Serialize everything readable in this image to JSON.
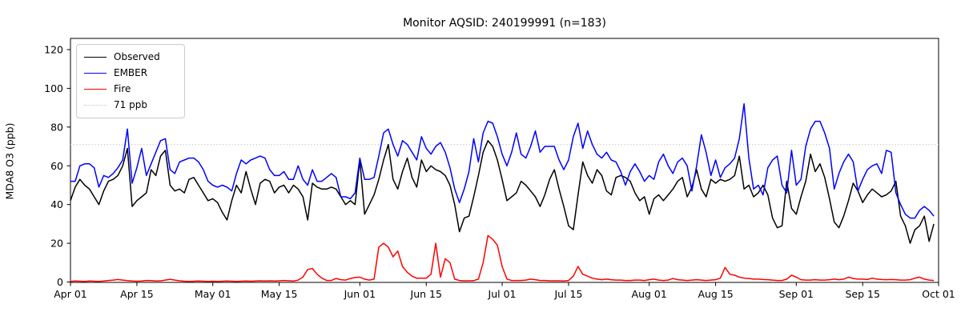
{
  "title": "Monitor AQSID: 240199991 (n=183)",
  "axes": {
    "ylabel": "MDA8 O3 (ppb)",
    "y_ticks": [
      0,
      20,
      40,
      60,
      80,
      100,
      120
    ],
    "frame_color": "#000000",
    "text_color": "#000000"
  },
  "legend": {
    "entries": [
      {
        "label": "Observed",
        "color": "#000000",
        "style": "solid"
      },
      {
        "label": "EMBER",
        "color": "#0000ff",
        "style": "solid"
      },
      {
        "label": "Fire",
        "color": "#ff0000",
        "style": "solid"
      },
      {
        "label": "71 ppb",
        "color": "#c8c8c8",
        "style": "dotted"
      }
    ]
  },
  "chart_data": {
    "type": "line",
    "title": "Monitor AQSID: 240199991 (n=183)",
    "xlabel": "",
    "ylabel": "MDA8 O3 (ppb)",
    "n_points": 183,
    "x_start": "Apr 01",
    "x_end": "Sep 30",
    "x_unit": "day",
    "ylim_ticks": [
      0,
      120
    ],
    "grid": false,
    "legend_position": "upper left",
    "reference_line": {
      "label": "71 ppb",
      "value": 71,
      "color": "#c8c8c8",
      "style": "dotted"
    },
    "x_ticks": [
      {
        "label": "Apr 01",
        "day": 0
      },
      {
        "label": "Apr 15",
        "day": 14
      },
      {
        "label": "May 01",
        "day": 30
      },
      {
        "label": "May 15",
        "day": 44
      },
      {
        "label": "Jun 01",
        "day": 61
      },
      {
        "label": "Jun 15",
        "day": 75
      },
      {
        "label": "Jul 01",
        "day": 91
      },
      {
        "label": "Jul 15",
        "day": 105
      },
      {
        "label": "Aug 01",
        "day": 122
      },
      {
        "label": "Aug 15",
        "day": 136
      },
      {
        "label": "Sep 01",
        "day": 153
      },
      {
        "label": "Sep 15",
        "day": 167
      },
      {
        "label": "Oct 01",
        "day": 183
      }
    ],
    "series": [
      {
        "name": "Observed",
        "color": "#000000",
        "values": [
          42,
          49,
          53,
          50,
          48,
          44,
          40,
          47,
          52,
          53,
          55,
          60,
          69,
          39,
          42,
          44,
          46,
          58,
          55,
          65,
          68,
          50,
          47,
          48,
          46,
          53,
          54,
          50,
          46,
          42,
          43,
          41,
          36,
          32,
          42,
          50,
          46,
          57,
          48,
          40,
          51,
          53,
          52,
          46,
          49,
          50,
          46,
          50,
          48,
          44,
          32,
          51,
          49,
          48,
          48,
          49,
          48,
          44,
          40,
          42,
          40,
          63,
          35,
          40,
          45,
          53,
          63,
          71,
          53,
          48,
          57,
          64,
          54,
          49,
          63,
          57,
          60,
          58,
          57,
          55,
          50,
          40,
          26,
          33,
          34,
          44,
          55,
          67,
          73,
          70,
          63,
          53,
          42,
          44,
          46,
          52,
          50,
          47,
          44,
          39,
          45,
          53,
          58,
          48,
          39,
          29,
          27,
          45,
          62,
          55,
          51,
          58,
          55,
          47,
          45,
          54,
          55,
          54,
          52,
          46,
          42,
          44,
          35,
          43,
          45,
          42,
          45,
          48,
          52,
          54,
          44,
          49,
          58,
          48,
          44,
          53,
          51,
          53,
          52,
          53,
          55,
          65,
          48,
          50,
          44,
          46,
          50,
          45,
          33,
          28,
          29,
          52,
          38,
          35,
          44,
          52,
          66,
          57,
          61,
          54,
          43,
          31,
          28,
          34,
          42,
          51,
          47,
          41,
          45,
          48,
          46,
          44,
          45,
          47,
          52,
          34,
          29,
          20,
          27,
          29,
          34,
          21,
          30
        ]
      },
      {
        "name": "EMBER",
        "color": "#0000ff",
        "values": [
          52,
          52,
          60,
          61,
          61,
          59,
          49,
          55,
          54,
          56,
          59,
          63,
          79,
          51,
          59,
          69,
          55,
          61,
          67,
          73,
          74,
          58,
          56,
          62,
          63,
          64,
          64,
          62,
          58,
          52,
          50,
          49,
          50,
          49,
          47,
          56,
          63,
          61,
          63,
          64,
          65,
          64,
          58,
          55,
          55,
          57,
          53,
          53,
          60,
          53,
          50,
          58,
          52,
          52,
          54,
          56,
          54,
          44,
          44,
          43,
          46,
          64,
          53,
          53,
          54,
          65,
          77,
          79,
          71,
          65,
          73,
          71,
          67,
          63,
          75,
          69,
          66,
          70,
          72,
          67,
          59,
          48,
          41,
          48,
          57,
          74,
          62,
          77,
          83,
          82,
          75,
          66,
          60,
          67,
          77,
          66,
          64,
          70,
          78,
          67,
          70,
          70,
          70,
          63,
          58,
          63,
          75,
          82,
          69,
          78,
          71,
          66,
          64,
          67,
          63,
          62,
          57,
          50,
          57,
          61,
          57,
          52,
          55,
          53,
          62,
          66,
          60,
          56,
          62,
          64,
          60,
          47,
          60,
          76,
          67,
          55,
          63,
          54,
          59,
          61,
          64,
          74,
          92,
          64,
          48,
          50,
          45,
          59,
          63,
          65,
          50,
          46,
          68,
          50,
          53,
          70,
          79,
          83,
          83,
          77,
          69,
          48,
          56,
          62,
          66,
          62,
          47,
          53,
          58,
          60,
          61,
          56,
          68,
          67,
          46,
          40,
          35,
          33,
          33,
          37,
          39,
          37,
          34
        ]
      },
      {
        "name": "Fire",
        "color": "#ff0000",
        "values": [
          0.3,
          0.5,
          0.4,
          0.3,
          0.5,
          0.4,
          0.3,
          0.5,
          0.8,
          1.0,
          1.3,
          1.0,
          0.7,
          0.5,
          0.4,
          0.5,
          0.8,
          0.7,
          0.5,
          0.6,
          1.0,
          1.4,
          1.0,
          0.6,
          0.4,
          0.3,
          0.4,
          0.5,
          0.4,
          0.3,
          0.4,
          0.3,
          0.4,
          0.5,
          0.4,
          0.3,
          0.4,
          0.5,
          0.4,
          0.5,
          0.6,
          0.5,
          0.6,
          0.5,
          0.6,
          0.8,
          0.6,
          0.5,
          1.0,
          2.5,
          6.5,
          7.0,
          4.0,
          2.0,
          0.8,
          0.8,
          1.8,
          1.2,
          1.0,
          1.8,
          2.3,
          2.5,
          1.5,
          1.0,
          1.5,
          18,
          20,
          18,
          13,
          16,
          8,
          5,
          3,
          2,
          2,
          2,
          4,
          20,
          2.5,
          12,
          10,
          1.5,
          0.8,
          0.6,
          0.6,
          0.7,
          1.5,
          10,
          24,
          22,
          19,
          8,
          1.5,
          0.8,
          0.8,
          0.8,
          1.0,
          1.5,
          1.2,
          0.8,
          0.8,
          0.6,
          0.6,
          0.6,
          0.5,
          0.8,
          3,
          8,
          4,
          3,
          2,
          1.5,
          1.2,
          1.5,
          1.2,
          1.0,
          1.0,
          0.8,
          0.8,
          1.0,
          1.0,
          0.8,
          1.2,
          1.5,
          1.0,
          0.8,
          1.0,
          1.8,
          1.2,
          1.0,
          0.8,
          1.0,
          1.2,
          1.0,
          0.8,
          1.0,
          1.2,
          2.0,
          7.5,
          4.0,
          3.5,
          2.5,
          2.0,
          1.8,
          1.5,
          1.5,
          1.3,
          1.2,
          1.0,
          0.8,
          0.8,
          1.5,
          3.5,
          2.5,
          1.2,
          1.0,
          1.0,
          1.2,
          1.0,
          1.0,
          1.2,
          1.5,
          1.2,
          1.5,
          2.5,
          1.8,
          1.5,
          1.5,
          1.3,
          2.0,
          1.5,
          1.3,
          1.2,
          1.3,
          1.2,
          1.0,
          1.0,
          1.2,
          2.0,
          2.5,
          1.5,
          1.0,
          0.8
        ]
      }
    ]
  }
}
